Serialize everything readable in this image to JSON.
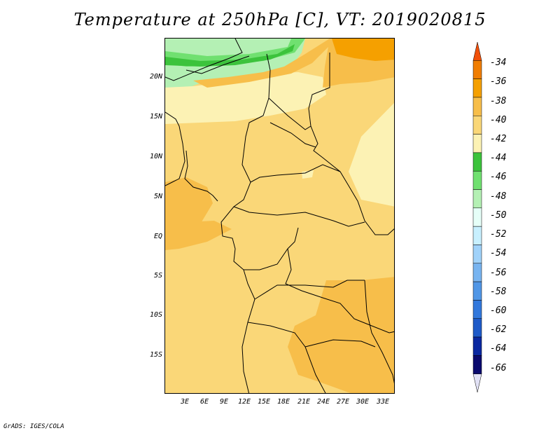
{
  "title": "Temperature at 250hPa [C], VT: 2019020815",
  "credit": "GrADS: IGES/COLA",
  "lat_labels": [
    "20N",
    "15N",
    "10N",
    "5N",
    "EQ",
    "5S",
    "10S",
    "15S"
  ],
  "lon_labels": [
    "3E",
    "6E",
    "9E",
    "12E",
    "15E",
    "18E",
    "21E",
    "24E",
    "27E",
    "30E",
    "33E"
  ],
  "colorbar": {
    "labels": [
      "-34",
      "-36",
      "-38",
      "-40",
      "-42",
      "-44",
      "-46",
      "-48",
      "-50",
      "-52",
      "-54",
      "-56",
      "-58",
      "-60",
      "-62",
      "-64",
      "-66"
    ],
    "colors": [
      "#f0500a",
      "#f07d00",
      "#f5a000",
      "#f7be4a",
      "#fad778",
      "#fcf2b4",
      "#3cc33c",
      "#70e070",
      "#b4f0b4",
      "#e6fff8",
      "#c8f0ff",
      "#a0d2fa",
      "#78b4f0",
      "#5096e6",
      "#3278dc",
      "#1e5ac8",
      "#0a28a0",
      "#0a0a6e",
      "#e1e1f5"
    ]
  }
}
